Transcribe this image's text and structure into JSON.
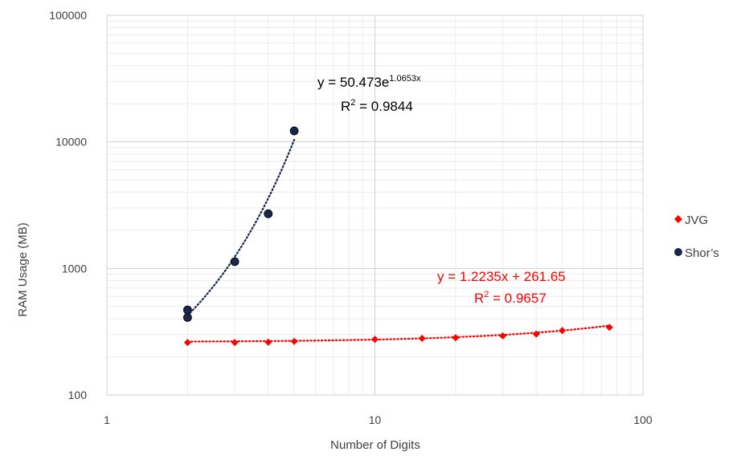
{
  "chart_data": {
    "type": "scatter",
    "xlabel": "Number of Digits",
    "ylabel": "RAM Usage (MB)",
    "xscale": "log",
    "yscale": "log",
    "xlim": [
      1,
      100
    ],
    "ylim": [
      100,
      100000
    ],
    "x_ticks": [
      "1",
      "10",
      "100"
    ],
    "y_ticks": [
      "100",
      "1000",
      "10000",
      "100000"
    ],
    "grid": true,
    "legend": "right",
    "series": [
      {
        "name": "JVG",
        "color": "#ff0000",
        "marker": "diamond",
        "x": [
          2,
          3,
          4,
          5,
          10,
          15,
          20,
          30,
          40,
          50,
          75
        ],
        "y": [
          260,
          260,
          261,
          265,
          275,
          280,
          283,
          293,
          303,
          323,
          342
        ],
        "trendline": {
          "kind": "linear",
          "equation": "y = 1.2235x + 261.65",
          "r2_label": "R",
          "r2_exponent": "2",
          "r2_value": " = 0.9657",
          "a": 1.2235,
          "b": 261.65
        }
      },
      {
        "name": "Shor’s",
        "color": "#17274d",
        "marker": "circle",
        "x": [
          2,
          2,
          3,
          4,
          5
        ],
        "y": [
          470,
          410,
          1130,
          2700,
          12200
        ],
        "trendline": {
          "kind": "exponential",
          "equation_prefix": "y = 50.473e",
          "equation_exponent": "1.0653x",
          "r2_label": "R",
          "r2_exponent": "2",
          "r2_value": " = 0.9844",
          "a": 50.473,
          "b": 1.0653
        }
      }
    ]
  }
}
